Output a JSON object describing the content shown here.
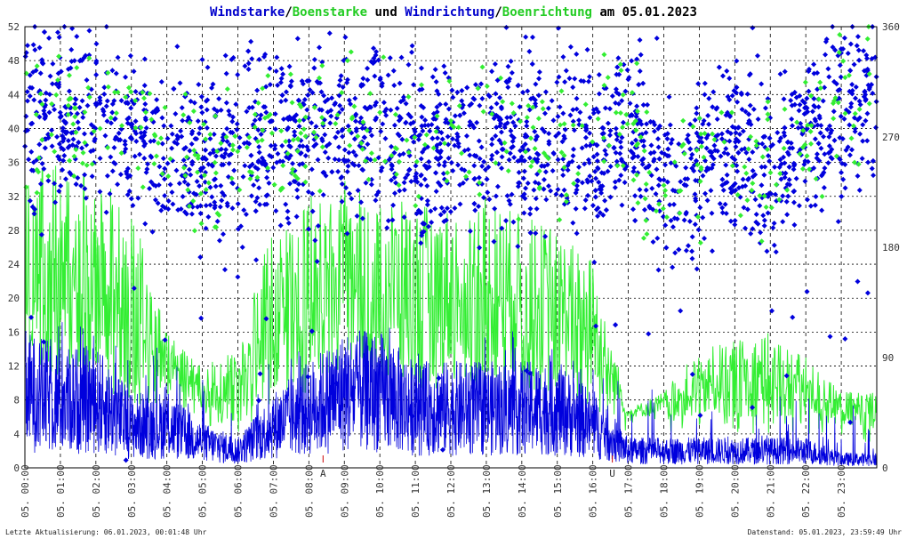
{
  "title": {
    "parts": [
      {
        "text": "Windstarke",
        "color": "#0000cc"
      },
      {
        "text": "/",
        "color": "#000000"
      },
      {
        "text": "Boenstarke",
        "color": "#22cc22"
      },
      {
        "text": " und ",
        "color": "#000000"
      },
      {
        "text": "Windrichtung",
        "color": "#0000cc"
      },
      {
        "text": "/",
        "color": "#000000"
      },
      {
        "text": "Boenrichtung",
        "color": "#22cc22"
      },
      {
        "text": " am 05.01.2023",
        "color": "#000000"
      }
    ]
  },
  "footer": {
    "left": "Letzte Aktualisierung: 06.01.2023, 00:01:48 Uhr",
    "right": "Datenstand: 05.01.2023, 23:59:49 Uhr"
  },
  "markers": {
    "sunrise_label": "A",
    "sunrise_hour": 8.4,
    "sunset_label": "U",
    "sunset_hour": 16.55,
    "color": "#cc0000"
  },
  "colors": {
    "wind": "#0000dd",
    "gust": "#33ee33",
    "grid": "#000000"
  },
  "chart_data": {
    "type": "line",
    "x_labels": [
      "05. 00:00",
      "05. 01:00",
      "05. 02:00",
      "05. 03:00",
      "05. 04:00",
      "05. 05:00",
      "05. 06:00",
      "05. 07:00",
      "05. 08:00",
      "05. 09:00",
      "05. 10:00",
      "05. 11:00",
      "05. 12:00",
      "05. 13:00",
      "05. 14:00",
      "05. 15:00",
      "05. 16:00",
      "05. 17:00",
      "05. 18:00",
      "05. 19:00",
      "05. 20:00",
      "05. 21:00",
      "05. 22:00",
      "05. 23:00"
    ],
    "xlim": [
      0,
      24
    ],
    "y_left": {
      "ticks": [
        0,
        4,
        8,
        12,
        16,
        20,
        24,
        28,
        32,
        36,
        40,
        44,
        48,
        52
      ],
      "ylim": [
        0,
        52
      ]
    },
    "y_right": {
      "ticks": [
        0,
        90,
        180,
        270,
        360
      ],
      "ylim": [
        0,
        360
      ]
    },
    "grid": true,
    "hourly_profile": {
      "hours": [
        0,
        1,
        2,
        3,
        4,
        5,
        6,
        7,
        8,
        9,
        10,
        11,
        12,
        13,
        14,
        15,
        16,
        17,
        18,
        19,
        20,
        21,
        22,
        23
      ],
      "wind_speed_avg": [
        9,
        8,
        8,
        5,
        5,
        3,
        2,
        5,
        7,
        9,
        9,
        7,
        7,
        7,
        7,
        7,
        5,
        2,
        2,
        2,
        2,
        2,
        2,
        1
      ],
      "gust_speed_peak": [
        32,
        35,
        32,
        30,
        14,
        10,
        12,
        27,
        30,
        32,
        30,
        29,
        29,
        30,
        28,
        26,
        23,
        5,
        7,
        12,
        13,
        14,
        11,
        7
      ],
      "wind_direction_typical_deg": [
        285,
        285,
        290,
        270,
        260,
        255,
        260,
        270,
        265,
        270,
        285,
        260,
        270,
        260,
        265,
        265,
        260,
        285,
        225,
        250,
        265,
        245,
        275,
        300
      ],
      "gust_direction_typical_deg": [
        275,
        275,
        285,
        275,
        260,
        250,
        260,
        265,
        265,
        275,
        285,
        260,
        265,
        265,
        270,
        265,
        270,
        280,
        215,
        240,
        265,
        245,
        265,
        305
      ]
    },
    "series": [
      {
        "name": "Windstarke",
        "color": "#0000dd",
        "axis": "left"
      },
      {
        "name": "Boenstarke",
        "color": "#33ee33",
        "axis": "left"
      },
      {
        "name": "Windrichtung",
        "color": "#0000dd",
        "axis": "right"
      },
      {
        "name": "Boenrichtung",
        "color": "#33ee33",
        "axis": "right"
      }
    ]
  }
}
